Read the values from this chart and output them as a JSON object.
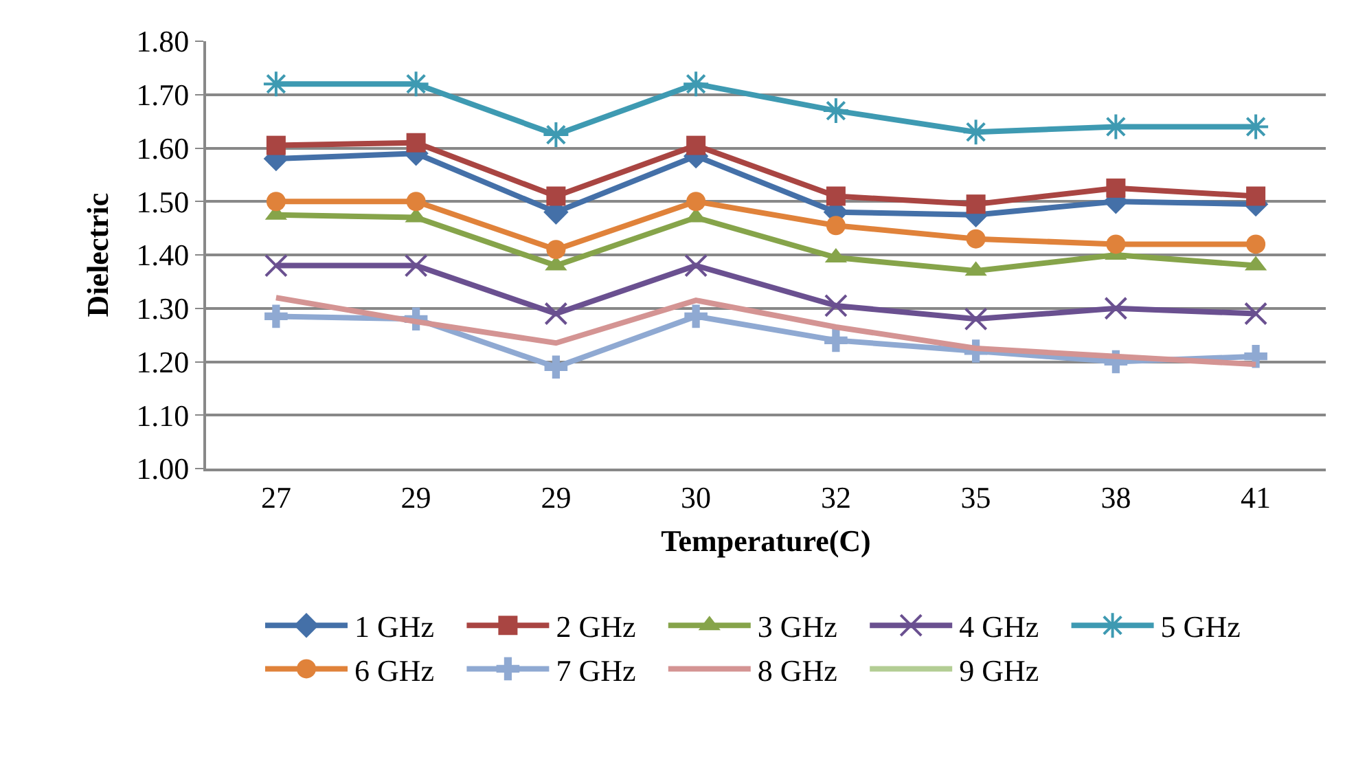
{
  "chart_data": {
    "type": "line",
    "xlabel": "Temperature(C)",
    "ylabel": "Dielectric",
    "categories": [
      "27",
      "29",
      "29",
      "30",
      "32",
      "35",
      "38",
      "41"
    ],
    "ylim": [
      1,
      1.8
    ],
    "yticks": [
      {
        "value": 1,
        "label": "1.00"
      },
      {
        "value": 1.1,
        "label": "1.10"
      },
      {
        "value": 1.2,
        "label": "1.20"
      },
      {
        "value": 1.3,
        "label": "1.30"
      },
      {
        "value": 1.4,
        "label": "1.40"
      },
      {
        "value": 1.5,
        "label": "1.50"
      },
      {
        "value": 1.6,
        "label": "1.60"
      },
      {
        "value": 1.7,
        "label": "1.70"
      },
      {
        "value": 1.8,
        "label": "1.80"
      }
    ],
    "grid": "y",
    "legend": "bottom",
    "series": [
      {
        "name": "1 GHz",
        "color": "#4470a8",
        "marker": "diamond",
        "values": [
          1.58,
          1.59,
          1.48,
          1.585,
          1.48,
          1.475,
          1.5,
          1.495
        ]
      },
      {
        "name": "2 GHz",
        "color": "#a94542",
        "marker": "square",
        "values": [
          1.605,
          1.61,
          1.51,
          1.605,
          1.51,
          1.495,
          1.525,
          1.51
        ]
      },
      {
        "name": "3 GHz",
        "color": "#86a44a",
        "marker": "triangle",
        "values": [
          1.475,
          1.47,
          1.38,
          1.47,
          1.395,
          1.37,
          1.4,
          1.38
        ]
      },
      {
        "name": "4 GHz",
        "color": "#6a5090",
        "marker": "cross",
        "values": [
          1.38,
          1.38,
          1.29,
          1.38,
          1.305,
          1.28,
          1.3,
          1.29
        ]
      },
      {
        "name": "5 GHz",
        "color": "#3e9ab2",
        "marker": "cross",
        "values": [
          1.72,
          1.72,
          1.625,
          1.72,
          1.67,
          1.63,
          1.64,
          1.64
        ]
      },
      {
        "name": "6 GHz",
        "color": "#e0823a",
        "marker": "circle",
        "values": [
          1.5,
          1.5,
          1.41,
          1.5,
          1.455,
          1.43,
          1.42,
          1.42
        ]
      },
      {
        "name": "7 GHz",
        "color": "#8fa9d2",
        "marker": "cross",
        "values": [
          1.285,
          1.28,
          1.19,
          1.285,
          1.24,
          1.22,
          1.2,
          1.21
        ]
      },
      {
        "name": "8 GHz",
        "color": "#d49493",
        "marker": "none",
        "values": [
          1.32,
          1.275,
          1.235,
          1.315,
          1.265,
          1.225,
          1.21,
          1.195
        ]
      },
      {
        "name": "9 GHz",
        "color": "#b3cd94",
        "marker": "none",
        "values": [
          null,
          null,
          null,
          null,
          null,
          null,
          null,
          null
        ]
      }
    ]
  }
}
